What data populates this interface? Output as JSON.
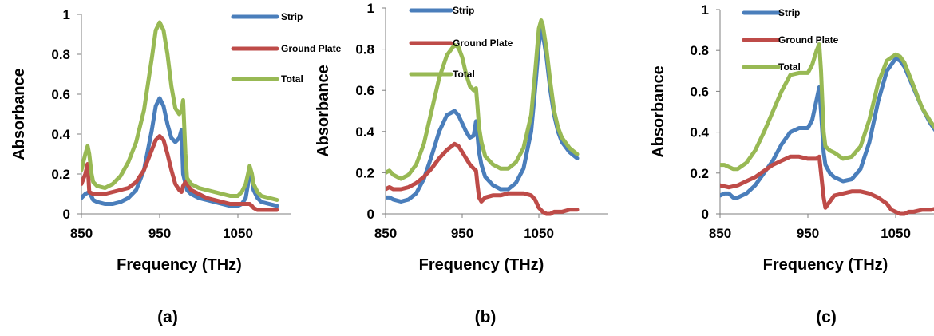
{
  "colors": {
    "Strip": "#4a7ebb",
    "Ground Plate": "#be4b48",
    "Total": "#98b954",
    "axis": "#7f7f7f"
  },
  "chart_data": [
    {
      "type": "line",
      "panel_label": "(a)",
      "xlabel": "Frequency (THz)",
      "ylabel": "Absorbance",
      "xlim": [
        850,
        1100
      ],
      "ylim": [
        0,
        1
      ],
      "xticks": [
        850,
        950,
        1050
      ],
      "yticks": [
        0,
        0.2,
        0.4,
        0.6,
        0.8,
        1
      ],
      "grid": false,
      "legend": "top-right",
      "series": [
        {
          "name": "Strip",
          "x": [
            850,
            855,
            860,
            865,
            870,
            880,
            890,
            900,
            910,
            920,
            930,
            940,
            945,
            950,
            955,
            960,
            965,
            970,
            975,
            978,
            980,
            985,
            990,
            1000,
            1010,
            1020,
            1030,
            1040,
            1050,
            1055,
            1060,
            1063,
            1065,
            1068,
            1070,
            1075,
            1080,
            1090,
            1100
          ],
          "y": [
            0.08,
            0.1,
            0.11,
            0.07,
            0.06,
            0.05,
            0.05,
            0.06,
            0.08,
            0.12,
            0.22,
            0.42,
            0.54,
            0.58,
            0.54,
            0.45,
            0.38,
            0.36,
            0.38,
            0.42,
            0.2,
            0.12,
            0.1,
            0.08,
            0.07,
            0.06,
            0.05,
            0.04,
            0.04,
            0.05,
            0.08,
            0.15,
            0.22,
            0.18,
            0.12,
            0.08,
            0.06,
            0.05,
            0.04
          ]
        },
        {
          "name": "Ground Plate",
          "x": [
            850,
            855,
            858,
            860,
            865,
            870,
            880,
            890,
            900,
            910,
            920,
            930,
            940,
            945,
            950,
            955,
            960,
            965,
            970,
            975,
            978,
            980,
            983,
            985,
            990,
            1000,
            1010,
            1020,
            1030,
            1040,
            1050,
            1060,
            1065,
            1068,
            1070,
            1075,
            1080,
            1090,
            1100
          ],
          "y": [
            0.15,
            0.2,
            0.25,
            0.11,
            0.1,
            0.1,
            0.1,
            0.11,
            0.12,
            0.13,
            0.16,
            0.22,
            0.32,
            0.37,
            0.39,
            0.37,
            0.3,
            0.22,
            0.15,
            0.12,
            0.11,
            0.14,
            0.16,
            0.15,
            0.12,
            0.1,
            0.08,
            0.07,
            0.06,
            0.05,
            0.05,
            0.05,
            0.05,
            0.04,
            0.03,
            0.02,
            0.02,
            0.02,
            0.02
          ]
        },
        {
          "name": "Total",
          "x": [
            850,
            855,
            858,
            860,
            863,
            865,
            870,
            880,
            890,
            900,
            910,
            920,
            930,
            940,
            945,
            950,
            955,
            960,
            965,
            970,
            975,
            978,
            980,
            983,
            985,
            990,
            1000,
            1010,
            1020,
            1030,
            1040,
            1050,
            1055,
            1060,
            1063,
            1065,
            1068,
            1070,
            1075,
            1080,
            1090,
            1100
          ],
          "y": [
            0.22,
            0.3,
            0.34,
            0.3,
            0.2,
            0.16,
            0.14,
            0.13,
            0.15,
            0.19,
            0.26,
            0.36,
            0.52,
            0.78,
            0.92,
            0.96,
            0.92,
            0.8,
            0.64,
            0.53,
            0.5,
            0.52,
            0.57,
            0.3,
            0.18,
            0.15,
            0.13,
            0.12,
            0.11,
            0.1,
            0.09,
            0.09,
            0.11,
            0.15,
            0.2,
            0.24,
            0.2,
            0.15,
            0.11,
            0.09,
            0.08,
            0.07
          ]
        }
      ]
    },
    {
      "type": "line",
      "panel_label": "(b)",
      "xlabel": "Frequency (THz)",
      "ylabel": "Absorbance",
      "xlim": [
        850,
        1100
      ],
      "ylim": [
        0,
        1
      ],
      "xticks": [
        850,
        950,
        1050
      ],
      "yticks": [
        0,
        0.2,
        0.4,
        0.6,
        0.8,
        1
      ],
      "grid": false,
      "legend": "top-left",
      "series": [
        {
          "name": "Strip",
          "x": [
            850,
            855,
            860,
            870,
            880,
            890,
            900,
            910,
            920,
            930,
            940,
            945,
            950,
            955,
            960,
            965,
            968,
            970,
            972,
            975,
            980,
            990,
            1000,
            1010,
            1020,
            1030,
            1040,
            1045,
            1050,
            1053,
            1055,
            1060,
            1065,
            1070,
            1075,
            1080,
            1090,
            1100
          ],
          "y": [
            0.08,
            0.08,
            0.07,
            0.06,
            0.07,
            0.1,
            0.17,
            0.28,
            0.4,
            0.48,
            0.5,
            0.48,
            0.44,
            0.4,
            0.37,
            0.38,
            0.45,
            0.38,
            0.3,
            0.24,
            0.18,
            0.14,
            0.12,
            0.12,
            0.15,
            0.22,
            0.4,
            0.6,
            0.82,
            0.9,
            0.88,
            0.76,
            0.6,
            0.48,
            0.4,
            0.35,
            0.3,
            0.27
          ]
        },
        {
          "name": "Ground Plate",
          "x": [
            850,
            855,
            860,
            870,
            880,
            890,
            900,
            910,
            920,
            930,
            940,
            945,
            950,
            955,
            960,
            965,
            968,
            970,
            972,
            975,
            980,
            990,
            1000,
            1010,
            1020,
            1030,
            1040,
            1045,
            1050,
            1055,
            1060,
            1065,
            1070,
            1080,
            1090,
            1100
          ],
          "y": [
            0.12,
            0.13,
            0.12,
            0.12,
            0.13,
            0.15,
            0.18,
            0.22,
            0.27,
            0.31,
            0.34,
            0.33,
            0.3,
            0.27,
            0.24,
            0.22,
            0.21,
            0.14,
            0.08,
            0.06,
            0.08,
            0.09,
            0.09,
            0.1,
            0.1,
            0.1,
            0.09,
            0.07,
            0.03,
            0.01,
            0.0,
            0.0,
            0.01,
            0.01,
            0.02,
            0.02
          ]
        },
        {
          "name": "Total",
          "x": [
            850,
            855,
            860,
            870,
            880,
            890,
            900,
            910,
            920,
            930,
            940,
            945,
            950,
            955,
            960,
            965,
            968,
            970,
            972,
            975,
            980,
            990,
            1000,
            1010,
            1020,
            1030,
            1040,
            1045,
            1050,
            1053,
            1055,
            1060,
            1065,
            1070,
            1075,
            1080,
            1090,
            1100
          ],
          "y": [
            0.2,
            0.21,
            0.19,
            0.17,
            0.19,
            0.24,
            0.34,
            0.5,
            0.66,
            0.77,
            0.82,
            0.81,
            0.76,
            0.68,
            0.62,
            0.6,
            0.61,
            0.52,
            0.42,
            0.35,
            0.28,
            0.24,
            0.22,
            0.22,
            0.25,
            0.32,
            0.48,
            0.68,
            0.9,
            0.94,
            0.92,
            0.8,
            0.64,
            0.5,
            0.42,
            0.37,
            0.32,
            0.29
          ]
        }
      ]
    },
    {
      "type": "line",
      "panel_label": "(c)",
      "xlabel": "Frequency (THz)",
      "ylabel": "Absorbance",
      "xlim": [
        850,
        1100
      ],
      "ylim": [
        0,
        1
      ],
      "xticks": [
        850,
        950,
        1050
      ],
      "yticks": [
        0,
        0.2,
        0.4,
        0.6,
        0.8,
        1
      ],
      "grid": false,
      "legend": "top-left",
      "series": [
        {
          "name": "Strip",
          "x": [
            850,
            855,
            860,
            865,
            870,
            880,
            890,
            900,
            910,
            920,
            930,
            940,
            950,
            955,
            960,
            963,
            965,
            968,
            970,
            975,
            980,
            990,
            1000,
            1010,
            1020,
            1030,
            1040,
            1050,
            1055,
            1060,
            1070,
            1080,
            1090,
            1100
          ],
          "y": [
            0.09,
            0.1,
            0.1,
            0.08,
            0.08,
            0.1,
            0.14,
            0.2,
            0.26,
            0.34,
            0.4,
            0.42,
            0.42,
            0.46,
            0.56,
            0.62,
            0.5,
            0.3,
            0.24,
            0.2,
            0.18,
            0.16,
            0.17,
            0.22,
            0.35,
            0.55,
            0.7,
            0.76,
            0.75,
            0.72,
            0.62,
            0.52,
            0.44,
            0.38
          ]
        },
        {
          "name": "Ground Plate",
          "x": [
            850,
            860,
            870,
            880,
            890,
            900,
            910,
            920,
            930,
            940,
            950,
            955,
            960,
            963,
            965,
            968,
            970,
            975,
            980,
            990,
            1000,
            1010,
            1020,
            1030,
            1040,
            1045,
            1050,
            1055,
            1060,
            1065,
            1070,
            1080,
            1090,
            1100
          ],
          "y": [
            0.14,
            0.13,
            0.14,
            0.16,
            0.18,
            0.21,
            0.24,
            0.26,
            0.28,
            0.28,
            0.27,
            0.27,
            0.27,
            0.28,
            0.2,
            0.08,
            0.03,
            0.06,
            0.09,
            0.1,
            0.11,
            0.11,
            0.1,
            0.08,
            0.05,
            0.02,
            0.01,
            0.0,
            0.0,
            0.01,
            0.01,
            0.02,
            0.02,
            0.03
          ]
        },
        {
          "name": "Total",
          "x": [
            850,
            855,
            860,
            865,
            870,
            880,
            890,
            900,
            910,
            920,
            930,
            940,
            950,
            955,
            960,
            963,
            965,
            968,
            970,
            975,
            980,
            990,
            1000,
            1010,
            1020,
            1030,
            1040,
            1050,
            1055,
            1060,
            1070,
            1080,
            1090,
            1100
          ],
          "y": [
            0.24,
            0.24,
            0.23,
            0.22,
            0.22,
            0.25,
            0.31,
            0.4,
            0.5,
            0.6,
            0.68,
            0.69,
            0.69,
            0.73,
            0.8,
            0.83,
            0.7,
            0.4,
            0.33,
            0.31,
            0.3,
            0.27,
            0.28,
            0.33,
            0.46,
            0.64,
            0.75,
            0.78,
            0.77,
            0.74,
            0.63,
            0.52,
            0.45,
            0.39
          ]
        }
      ]
    }
  ]
}
